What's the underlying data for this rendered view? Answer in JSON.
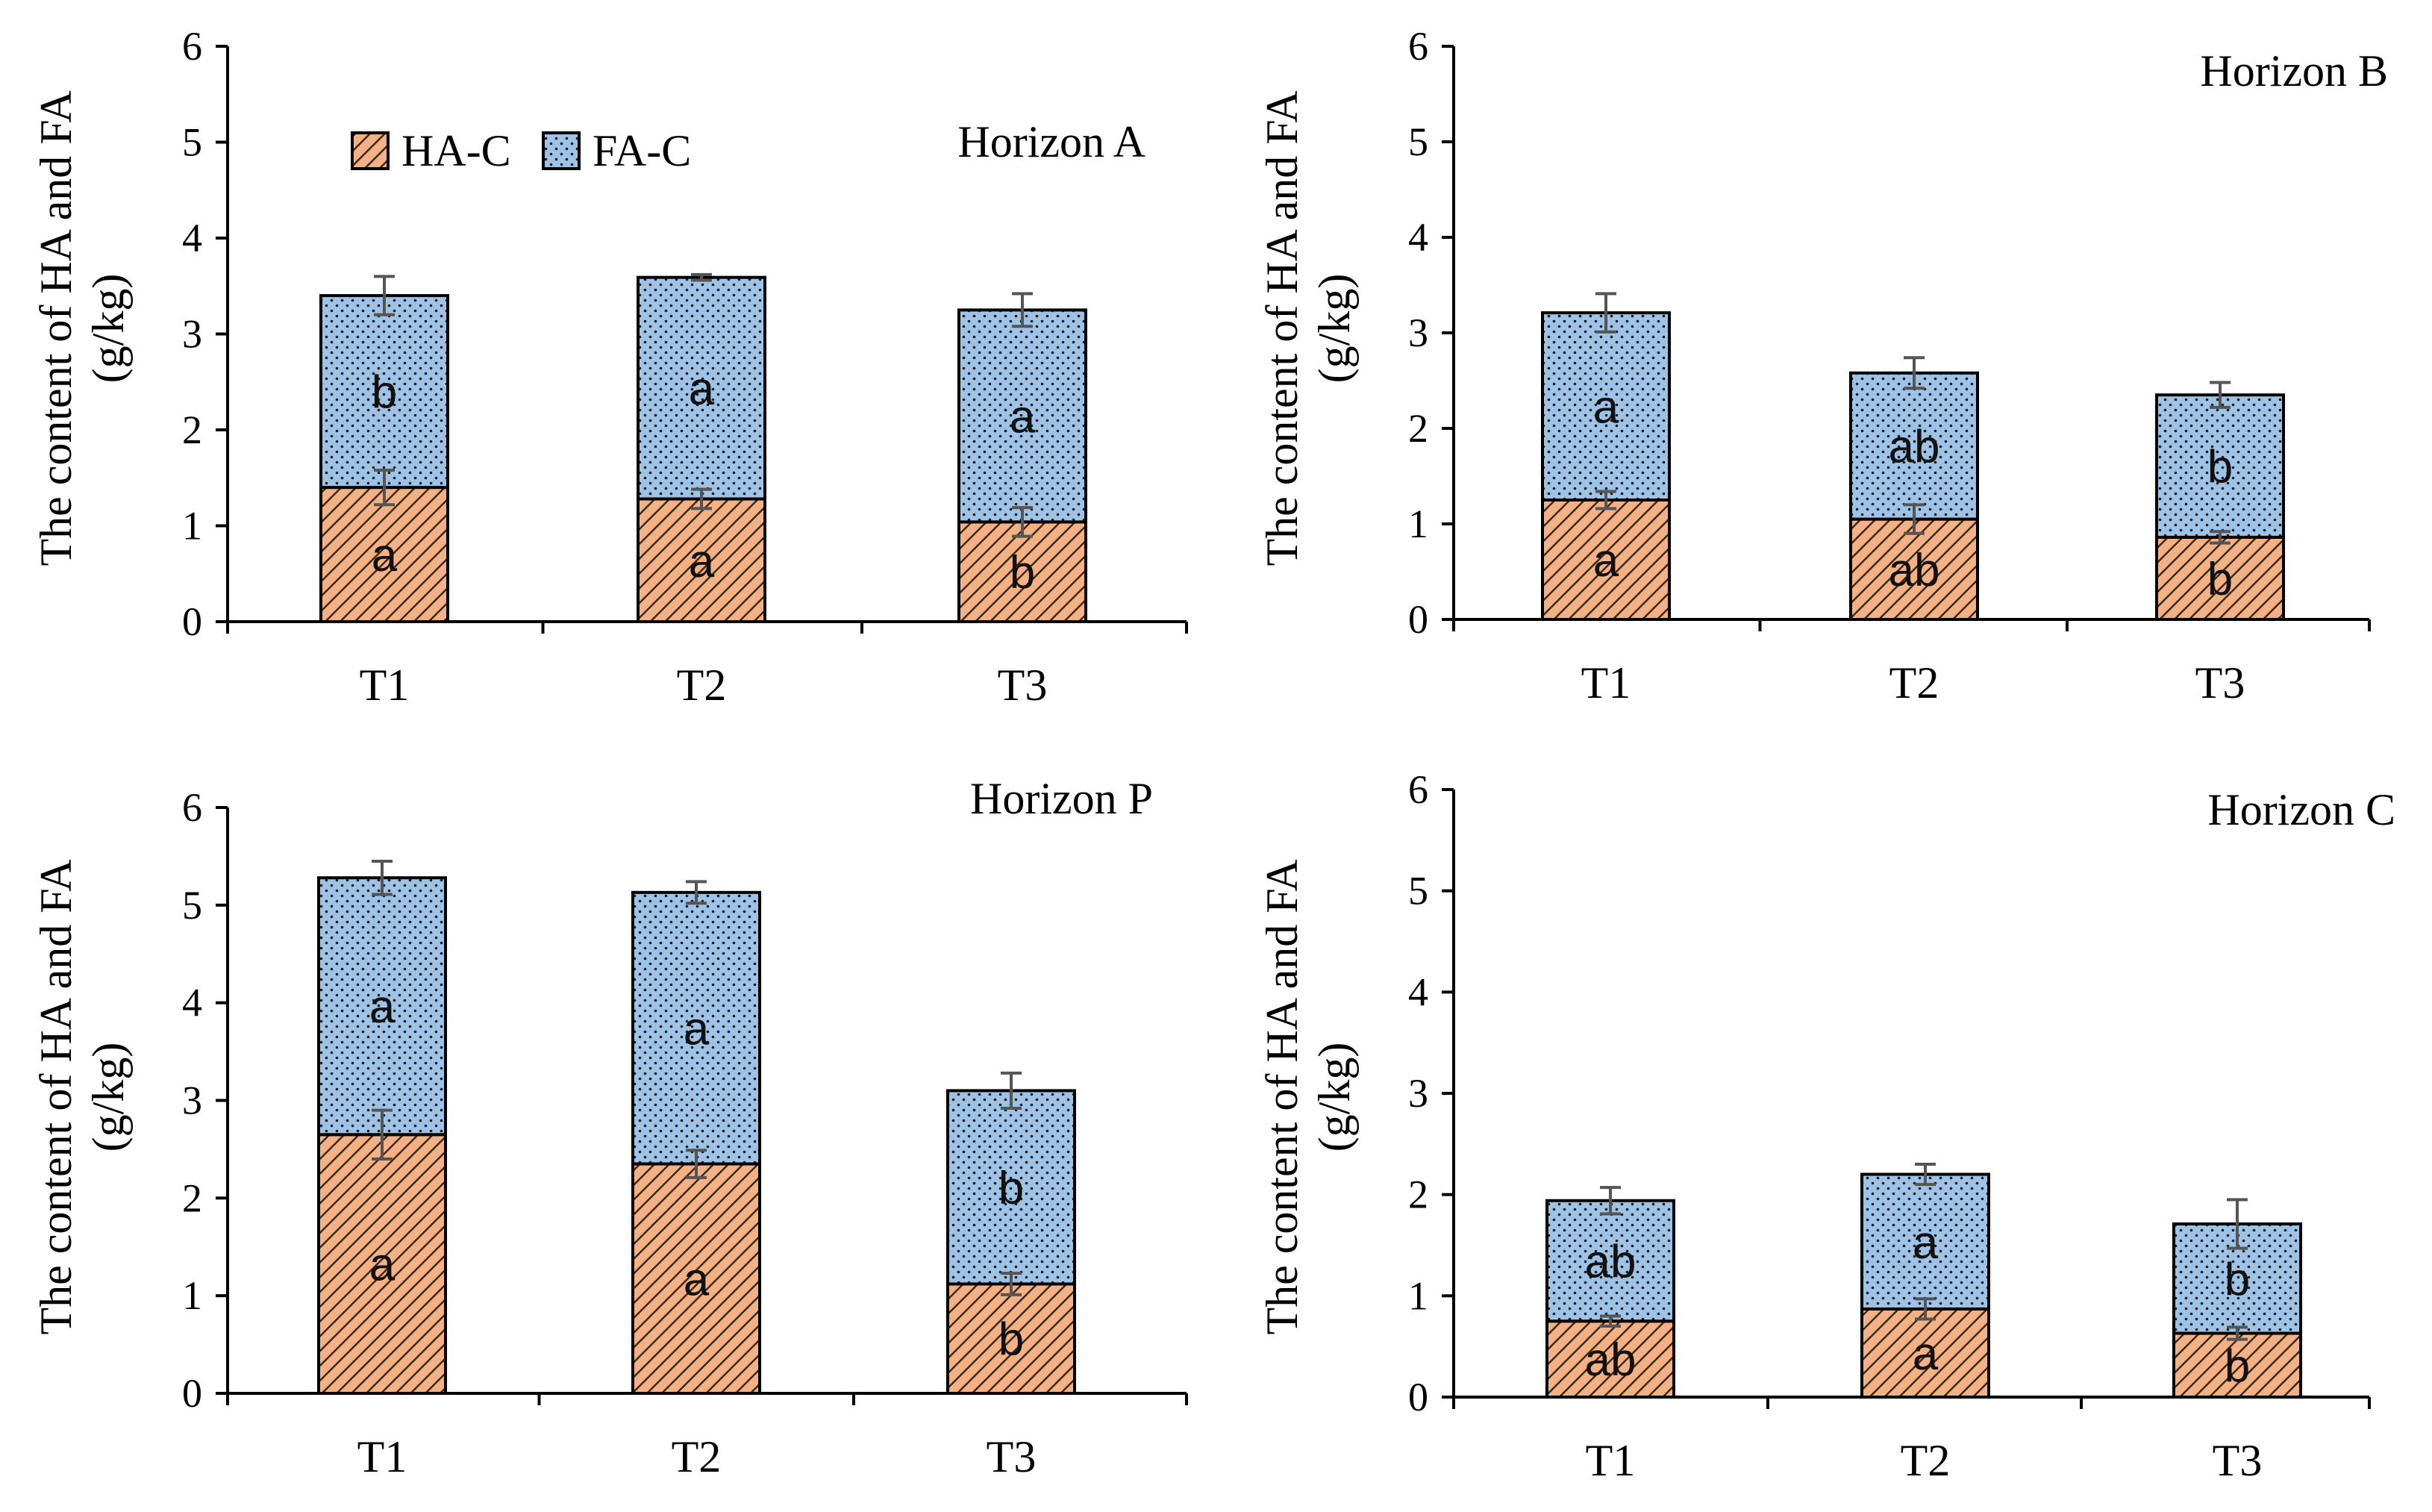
{
  "colors": {
    "ha_fill": "#f4b183",
    "ha_hatch": "#3a2a1a",
    "fa_fill": "#9dc3e6",
    "fa_dots": "#1a1a1a"
  },
  "chart_data": [
    {
      "type": "bar",
      "stacked": true,
      "title": "Horizon A",
      "ylabel_line1": "The content of HA and FA",
      "ylabel_line2": "(g/kg)",
      "ylim": [
        0,
        6
      ],
      "yticks": [
        0,
        1,
        2,
        3,
        4,
        5,
        6
      ],
      "categories": [
        "T1",
        "T2",
        "T3"
      ],
      "legend": [
        "HA-C",
        "FA-C"
      ],
      "series": [
        {
          "name": "HA-C",
          "values": [
            1.4,
            1.28,
            1.04
          ],
          "errors": [
            0.18,
            0.1,
            0.15
          ],
          "letters": [
            "a",
            "a",
            "b"
          ]
        },
        {
          "name": "FA-C",
          "values": [
            2.0,
            2.31,
            2.21
          ],
          "errors": [
            0.2,
            0.03,
            0.17
          ],
          "letters": [
            "b",
            "a",
            "a"
          ]
        }
      ]
    },
    {
      "type": "bar",
      "stacked": true,
      "title": "Horizon B",
      "ylabel_line1": "The content of HA and FA",
      "ylabel_line2": "(g/kg)",
      "ylim": [
        0,
        6
      ],
      "yticks": [
        0,
        1,
        2,
        3,
        4,
        5,
        6
      ],
      "categories": [
        "T1",
        "T2",
        "T3"
      ],
      "series": [
        {
          "name": "HA-C",
          "values": [
            1.25,
            1.05,
            0.86
          ],
          "errors": [
            0.09,
            0.15,
            0.06
          ],
          "letters": [
            "a",
            "ab",
            "b"
          ]
        },
        {
          "name": "FA-C",
          "values": [
            1.96,
            1.53,
            1.49
          ],
          "errors": [
            0.2,
            0.16,
            0.13
          ],
          "letters": [
            "a",
            "ab",
            "b"
          ]
        }
      ]
    },
    {
      "type": "bar",
      "stacked": true,
      "title": "Horizon P",
      "ylabel_line1": "The content of HA and FA",
      "ylabel_line2": "(g/kg)",
      "ylim": [
        0,
        6
      ],
      "yticks": [
        0,
        1,
        2,
        3,
        4,
        5,
        6
      ],
      "categories": [
        "T1",
        "T2",
        "T3"
      ],
      "series": [
        {
          "name": "HA-C",
          "values": [
            2.65,
            2.35,
            1.12
          ],
          "errors": [
            0.25,
            0.14,
            0.11
          ],
          "letters": [
            "a",
            "a",
            "b"
          ]
        },
        {
          "name": "FA-C",
          "values": [
            2.63,
            2.78,
            1.98
          ],
          "errors": [
            0.17,
            0.11,
            0.18
          ],
          "letters": [
            "a",
            "a",
            "b"
          ]
        }
      ]
    },
    {
      "type": "bar",
      "stacked": true,
      "title": "Horizon C",
      "ylabel_line1": "The content of HA and FA",
      "ylabel_line2": "(g/kg)",
      "ylim": [
        0,
        6
      ],
      "yticks": [
        0,
        1,
        2,
        3,
        4,
        5,
        6
      ],
      "categories": [
        "T1",
        "T2",
        "T3"
      ],
      "series": [
        {
          "name": "HA-C",
          "values": [
            0.75,
            0.87,
            0.63
          ],
          "errors": [
            0.05,
            0.1,
            0.06
          ],
          "letters": [
            "ab",
            "a",
            "b"
          ]
        },
        {
          "name": "FA-C",
          "values": [
            1.19,
            1.33,
            1.08
          ],
          "errors": [
            0.13,
            0.1,
            0.24
          ],
          "letters": [
            "ab",
            "a",
            "b"
          ]
        }
      ]
    }
  ]
}
